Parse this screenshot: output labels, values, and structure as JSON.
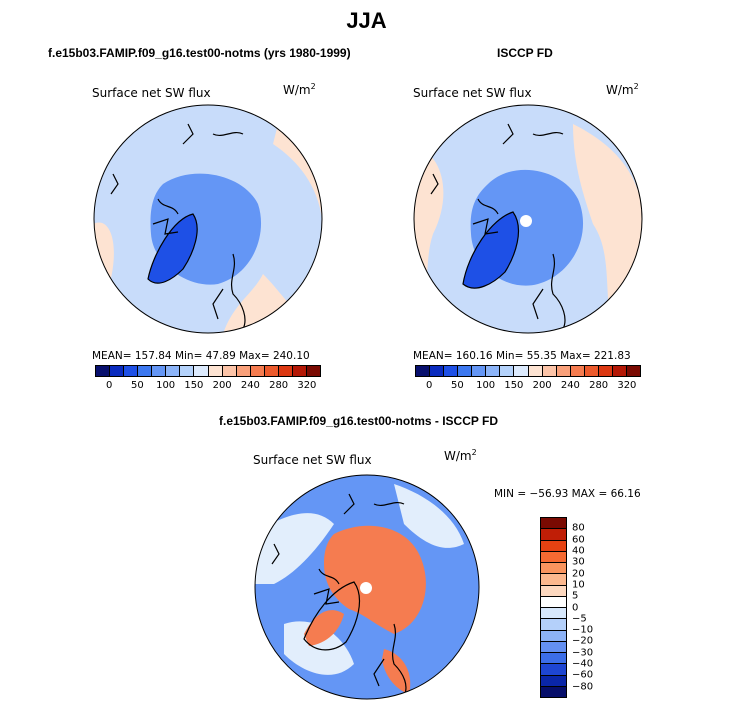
{
  "figure": {
    "title": "JJA"
  },
  "panels": [
    {
      "title": "f.e15b03.FAMIP.f09_g16.test00-notms (yrs 1980-1999)",
      "left_label": "Surface net SW flux",
      "unit_base": "W/m",
      "unit_exp": "2",
      "stats": "MEAN= 157.84  Min=  47.89  Max= 240.10"
    },
    {
      "title": "ISCCP FD",
      "left_label": "Surface net SW flux",
      "unit_base": "W/m",
      "unit_exp": "2",
      "stats": "MEAN= 160.16  Min=  55.35  Max= 221.83"
    },
    {
      "title": "f.e15b03.FAMIP.f09_g16.test00-notms - ISCCP FD",
      "left_label": "Surface net SW flux",
      "unit_base": "W/m",
      "unit_exp": "2",
      "stats": "MIN = −56.93  MAX =   66.16"
    }
  ],
  "colorbar_abs": {
    "colors": [
      "#08106e",
      "#0a2bbf",
      "#1e50e6",
      "#3c78f0",
      "#6496f5",
      "#8cb4f8",
      "#b4d2fb",
      "#dceafd",
      "#fde3d2",
      "#fcc4a8",
      "#f9a07a",
      "#f57c50",
      "#ec5a2c",
      "#dc3812",
      "#b41806",
      "#7a0a02"
    ],
    "tick_labels": [
      "0",
      "50",
      "100",
      "150",
      "200",
      "240",
      "280",
      "320"
    ]
  },
  "colorbar_diff": {
    "colors": [
      "#7a0a02",
      "#c01e06",
      "#e64212",
      "#f56a32",
      "#f9945e",
      "#fcb88e",
      "#fdd8bf",
      "#ffffff",
      "#d7e8fc",
      "#b4d0fa",
      "#8cb2f6",
      "#6490f2",
      "#3c6ee8",
      "#1e46d2",
      "#0a26a8",
      "#060e6a"
    ],
    "tick_labels": [
      "80",
      "60",
      "40",
      "30",
      "20",
      "10",
      "5",
      "0",
      "−5",
      "−10",
      "−20",
      "−30",
      "−40",
      "−60",
      "−80"
    ]
  },
  "map_fields": {
    "abs_ocean": "#c8dcfa",
    "abs_land_warm": "#fde3d2",
    "abs_arctic": "#6496f5",
    "abs_greenland": "#1e50e6",
    "diff_ocean": "#6496f5",
    "diff_pole": "#f57c50",
    "diff_pale": "#e2eefc",
    "coast_color": "#000000",
    "pole_hole": "#ffffff"
  }
}
